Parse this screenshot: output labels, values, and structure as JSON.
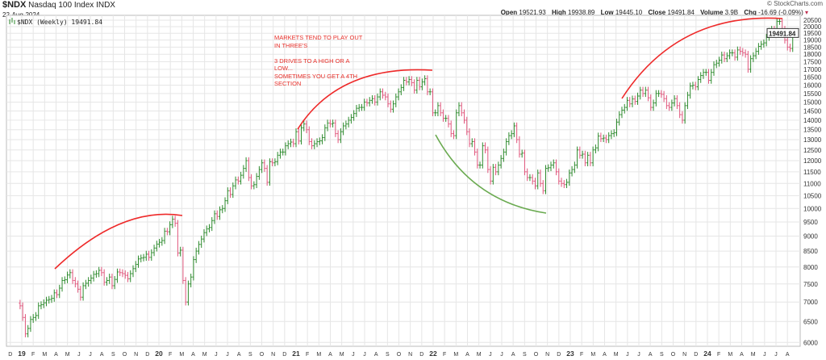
{
  "header": {
    "symbol": "$NDX",
    "name": "Nasdaq 100 Index",
    "exchange": "INDX",
    "date": "22-Aug-2024",
    "copyright": "© StockCharts.com",
    "open_label": "Open",
    "open": "19521.93",
    "high_label": "High",
    "high": "19938.89",
    "low_label": "Low",
    "low": "19445.10",
    "close_label": "Close",
    "close": "19491.84",
    "volume_label": "Volume",
    "volume": "3.9B",
    "chg_label": "Chg",
    "chg": "-16.69 (-0.09%)",
    "chg_direction": "down"
  },
  "legend": {
    "text": "$NDX (Weekly) 19491.84"
  },
  "last_price_label": "19491.84",
  "annotation_text": "MARKETS TEND TO PLAY OUT\nIN THREE'S\n\n3 DRIVES TO A HIGH OR A\nLOW...\nSOMETIMES YOU GET A 4TH\nSECTION",
  "colors": {
    "up": "#2e8b2e",
    "down": "#e0567c",
    "annotation_red": "#ee2a2a",
    "annotation_green": "#6aaa50",
    "grid": "#e6e6e6"
  },
  "chart_data": {
    "type": "bar",
    "subtype": "ohlc-weekly",
    "y_scale": "log",
    "ylim": [
      5800,
      20700
    ],
    "grid": true,
    "y_ticks": [
      "6000",
      "6500",
      "7000",
      "7500",
      "8000",
      "8500",
      "9000",
      "9500",
      "10000",
      "10500",
      "11000",
      "11500",
      "12000",
      "12500",
      "13000",
      "13500",
      "14000",
      "14500",
      "15000",
      "15500",
      "16000",
      "16500",
      "17000",
      "17500",
      "18000",
      "18500",
      "19000",
      "19500",
      "20000",
      "20500"
    ],
    "x_tick_labels": [
      "D",
      "19",
      "F",
      "M",
      "A",
      "M",
      "J",
      "J",
      "A",
      "S",
      "O",
      "N",
      "D",
      "20",
      "F",
      "M",
      "A",
      "M",
      "J",
      "J",
      "A",
      "S",
      "O",
      "N",
      "D",
      "21",
      "F",
      "M",
      "A",
      "M",
      "J",
      "J",
      "A",
      "S",
      "O",
      "N",
      "D",
      "22",
      "F",
      "M",
      "A",
      "M",
      "J",
      "J",
      "A",
      "S",
      "O",
      "N",
      "D",
      "23",
      "F",
      "M",
      "A",
      "M",
      "J",
      "J",
      "A",
      "S",
      "O",
      "N",
      "D",
      "24",
      "F",
      "M",
      "A",
      "M",
      "J",
      "J",
      "A"
    ],
    "weekly_closes": [
      6900,
      6600,
      6200,
      6330,
      6550,
      6600,
      6650,
      6900,
      6930,
      6980,
      7050,
      7070,
      7100,
      7250,
      7200,
      7380,
      7600,
      7620,
      7760,
      7830,
      7600,
      7500,
      7350,
      7130,
      7450,
      7520,
      7600,
      7670,
      7780,
      7800,
      7900,
      7830,
      7550,
      7600,
      7700,
      7450,
      7630,
      7850,
      7830,
      7800,
      7750,
      7650,
      7800,
      7950,
      8080,
      8250,
      8280,
      8300,
      8400,
      8300,
      8450,
      8600,
      8730,
      8790,
      8850,
      9170,
      9150,
      9400,
      9600,
      9450,
      8440,
      8530,
      7600,
      7000,
      7500,
      7700,
      8230,
      8500,
      8720,
      8900,
      9120,
      9250,
      9300,
      9550,
      9800,
      9700,
      9950,
      10000,
      10300,
      10700,
      10550,
      10900,
      11150,
      11100,
      11350,
      11650,
      12000,
      11250,
      10900,
      10950,
      11300,
      11600,
      11900,
      11650,
      11050,
      11950,
      11900,
      11950,
      12250,
      12400,
      12400,
      12700,
      12800,
      12880,
      12800,
      13400,
      12930,
      13600,
      13800,
      13500,
      12900,
      12700,
      12800,
      12900,
      12940,
      13100,
      13600,
      13850,
      13800,
      13850,
      13300,
      13000,
      13400,
      13700,
      13800,
      14000,
      14150,
      14360,
      14650,
      14700,
      14700,
      15000,
      14950,
      15100,
      15200,
      15000,
      15300,
      15600,
      15400,
      15300,
      14900,
      14600,
      14900,
      15300,
      15600,
      15850,
      16300,
      16200,
      16350,
      16150,
      15700,
      16300,
      15900,
      16200,
      16400,
      15600,
      15600,
      14400,
      14400,
      14800,
      14400,
      14100,
      14100,
      13800,
      13300,
      13200,
      14400,
      14800,
      14400,
      14000,
      13400,
      12800,
      12900,
      12400,
      11800,
      11800,
      12700,
      12500,
      11600,
      11100,
      11700,
      11500,
      11800,
      12100,
      12400,
      12900,
      13200,
      13300,
      13700,
      13000,
      12300,
      12350,
      11500,
      11250,
      11250,
      11100,
      10900,
      11450,
      11000,
      10700,
      11650,
      11680,
      11800,
      11900,
      11500,
      11100,
      11000,
      10950,
      11050,
      11450,
      11600,
      11800,
      12500,
      12250,
      12300,
      11900,
      12250,
      11900,
      12500,
      12600,
      13180,
      13050,
      13080,
      13000,
      13200,
      13300,
      13350,
      13900,
      14300,
      14550,
      14700,
      15100,
      14900,
      15180,
      15040,
      15350,
      15700,
      15500,
      15700,
      15250,
      14700,
      14950,
      15500,
      15500,
      15450,
      15200,
      14800,
      14700,
      14950,
      15200,
      14800,
      14300,
      14000,
      14800,
      15400,
      15950,
      16000,
      15900,
      16350,
      16600,
      16800,
      16800,
      16300,
      16800,
      17300,
      17400,
      17600,
      17950,
      17700,
      17900,
      18100,
      18100,
      17800,
      18300,
      18200,
      18100,
      18000,
      17000,
      17700,
      17900,
      18200,
      18550,
      18700,
      18800,
      19200,
      19650,
      19800,
      19700,
      20400,
      20400,
      19800,
      19000,
      18500,
      18400,
      19500,
      19491.84
    ]
  }
}
